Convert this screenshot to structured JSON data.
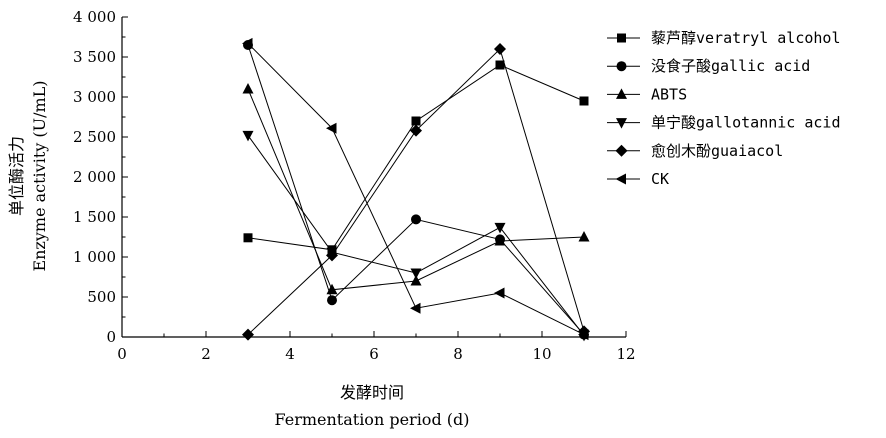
{
  "chart_data": {
    "type": "line",
    "xlabel_cn": "发酵时间",
    "xlabel_en": "Fermentation period (d)",
    "ylabel_cn": "单位酶活力",
    "ylabel_en": "Enzyme activity (U/mL)",
    "xlim": [
      0,
      12
    ],
    "ylim": [
      0,
      4000
    ],
    "x_ticks": [
      0,
      2,
      4,
      6,
      8,
      10,
      12
    ],
    "x_tick_labels": [
      "0",
      "2",
      "4",
      "6",
      "8",
      "10",
      "12"
    ],
    "y_ticks": [
      0,
      500,
      1000,
      1500,
      2000,
      2500,
      3000,
      3500,
      4000
    ],
    "y_tick_labels": [
      "0",
      "500",
      "1 000",
      "1 500",
      "2 000",
      "2 500",
      "3 000",
      "3 500",
      "4 000"
    ],
    "grid": false,
    "legend_position": "right",
    "x": [
      3,
      5,
      7,
      9,
      11
    ],
    "series": [
      {
        "name": "藜芦醇veratryl alcohol",
        "marker": "square",
        "values": [
          1240,
          1090,
          2700,
          3400,
          2950
        ]
      },
      {
        "name": "没食子酸gallic acid",
        "marker": "circle",
        "values": [
          3650,
          460,
          1470,
          1220,
          30
        ]
      },
      {
        "name": "ABTS",
        "marker": "triangle-up",
        "values": [
          3100,
          590,
          700,
          1200,
          1250
        ]
      },
      {
        "name": "单宁酸gallotannic acid",
        "marker": "triangle-down",
        "values": [
          2520,
          1060,
          800,
          1370,
          20
        ]
      },
      {
        "name": "愈创木酚guaiacol",
        "marker": "diamond",
        "values": [
          30,
          1020,
          2580,
          3600,
          70
        ]
      },
      {
        "name": "CK",
        "marker": "triangle-left",
        "values": [
          3670,
          2610,
          360,
          550,
          30
        ]
      }
    ]
  }
}
